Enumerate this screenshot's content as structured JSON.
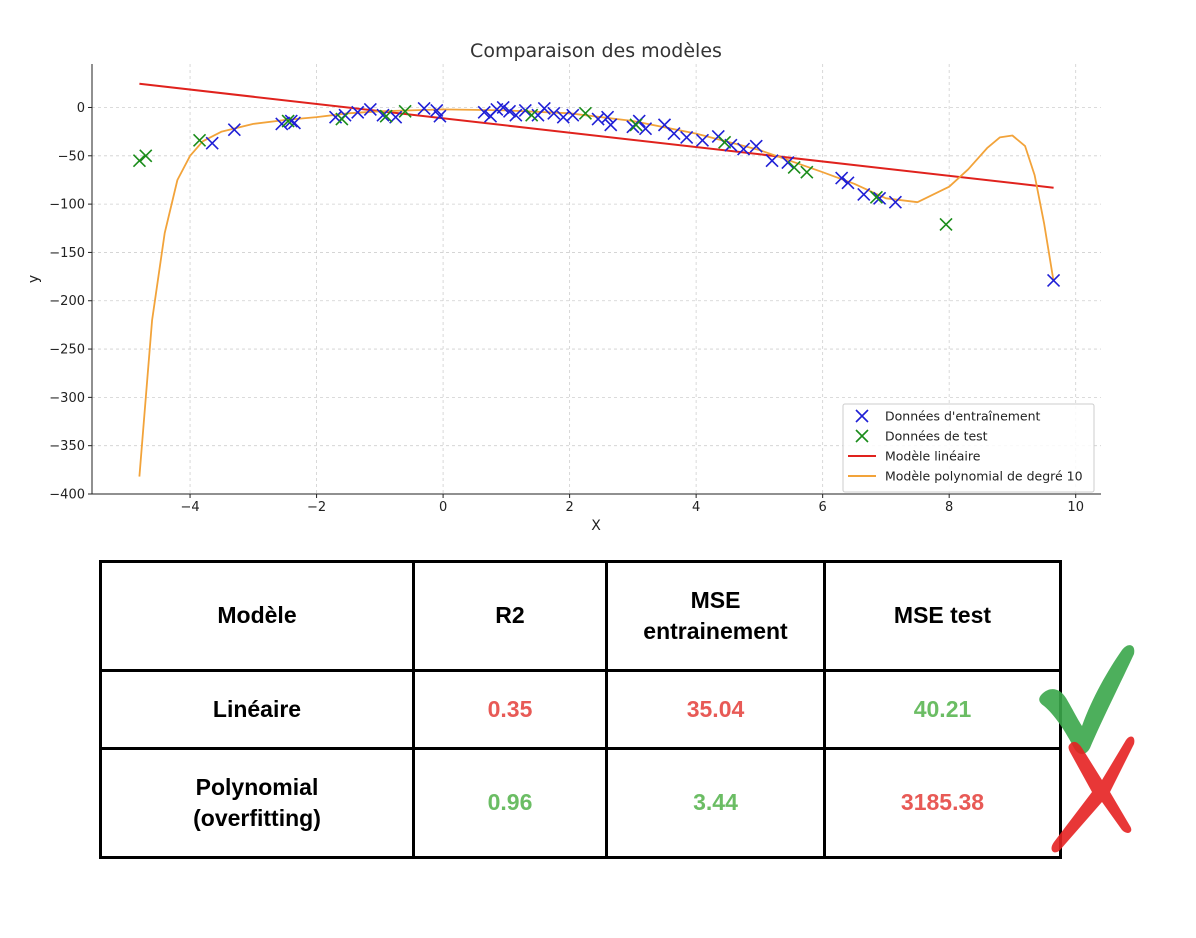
{
  "chart_data": {
    "type": "scatter",
    "title": "Comparaison des modèles",
    "xlabel": "X",
    "ylabel": "y",
    "xlim": [
      -5.55,
      10.4
    ],
    "ylim": [
      -400,
      45
    ],
    "x_ticks": [
      -4,
      -2,
      0,
      2,
      4,
      6,
      8,
      10
    ],
    "y_ticks": [
      0,
      -50,
      -100,
      -150,
      -200,
      -250,
      -300,
      -350,
      -400
    ],
    "x_tick_labels": [
      "−4",
      "−2",
      "0",
      "2",
      "4",
      "6",
      "8",
      "10"
    ],
    "y_tick_labels": [
      "0",
      "−50",
      "−100",
      "−150",
      "−200",
      "−250",
      "−300",
      "−350",
      "−400"
    ],
    "grid": true,
    "legend_position": "bottom-right",
    "series": [
      {
        "name": "Données d'entraînement",
        "kind": "scatter",
        "marker": "x",
        "color": "#1f1fd6",
        "points": [
          [
            -3.65,
            -37
          ],
          [
            -3.3,
            -23
          ],
          [
            -2.55,
            -17
          ],
          [
            -2.4,
            -14
          ],
          [
            -2.35,
            -16
          ],
          [
            -1.7,
            -10
          ],
          [
            -1.55,
            -8
          ],
          [
            -1.35,
            -5
          ],
          [
            -1.15,
            -2
          ],
          [
            -0.95,
            -8
          ],
          [
            -0.75,
            -10
          ],
          [
            -0.3,
            -1
          ],
          [
            -0.1,
            -3
          ],
          [
            -0.05,
            -9
          ],
          [
            0.65,
            -5
          ],
          [
            0.75,
            -9
          ],
          [
            0.85,
            -2
          ],
          [
            0.95,
            0
          ],
          [
            1.05,
            -4
          ],
          [
            1.15,
            -8
          ],
          [
            1.3,
            -3
          ],
          [
            1.5,
            -8
          ],
          [
            1.6,
            -1
          ],
          [
            1.75,
            -6
          ],
          [
            1.9,
            -10
          ],
          [
            2.05,
            -8
          ],
          [
            2.45,
            -12
          ],
          [
            2.6,
            -10
          ],
          [
            2.65,
            -18
          ],
          [
            3.0,
            -20
          ],
          [
            3.1,
            -14
          ],
          [
            3.2,
            -22
          ],
          [
            3.5,
            -18
          ],
          [
            3.65,
            -27
          ],
          [
            3.85,
            -31
          ],
          [
            4.1,
            -34
          ],
          [
            4.35,
            -30
          ],
          [
            4.55,
            -39
          ],
          [
            4.75,
            -43
          ],
          [
            4.95,
            -40
          ],
          [
            5.2,
            -55
          ],
          [
            5.45,
            -57
          ],
          [
            6.3,
            -73
          ],
          [
            6.4,
            -78
          ],
          [
            6.65,
            -90
          ],
          [
            6.9,
            -94
          ],
          [
            7.15,
            -98
          ],
          [
            9.65,
            -179
          ]
        ]
      },
      {
        "name": "Données de test",
        "kind": "scatter",
        "marker": "x",
        "color": "#1a8c1a",
        "points": [
          [
            -4.8,
            -55
          ],
          [
            -4.7,
            -50
          ],
          [
            -3.85,
            -34
          ],
          [
            -2.45,
            -14
          ],
          [
            -1.6,
            -12
          ],
          [
            -0.9,
            -9
          ],
          [
            -0.6,
            -4
          ],
          [
            1.4,
            -8
          ],
          [
            2.25,
            -6
          ],
          [
            3.05,
            -18
          ],
          [
            4.45,
            -36
          ],
          [
            5.55,
            -62
          ],
          [
            5.75,
            -67
          ],
          [
            6.85,
            -93
          ],
          [
            7.95,
            -121
          ]
        ]
      },
      {
        "name": "Modèle linéaire",
        "kind": "line",
        "color": "#e0221d",
        "x": [
          -4.8,
          9.65
        ],
        "y": [
          24.5,
          -83
        ]
      },
      {
        "name": "Modèle polynomial de degré 10",
        "kind": "line",
        "color": "#f2a33a",
        "x": [
          -4.8,
          -4.7,
          -4.6,
          -4.4,
          -4.2,
          -4.0,
          -3.8,
          -3.5,
          -3.0,
          -2.5,
          -2.0,
          -1.5,
          -1.0,
          0.0,
          1.0,
          2.0,
          3.0,
          4.0,
          5.0,
          6.0,
          6.5,
          7.0,
          7.5,
          8.0,
          8.3,
          8.6,
          8.8,
          9.0,
          9.2,
          9.35,
          9.5,
          9.65
        ],
        "y": [
          -382,
          -300,
          -220,
          -130,
          -75,
          -50,
          -35,
          -25,
          -17,
          -13,
          -10,
          -6,
          -4,
          -2,
          -3,
          -6,
          -14,
          -27,
          -44,
          -67,
          -79,
          -94,
          -98,
          -82,
          -64,
          -42,
          -31,
          -29,
          -40,
          -70,
          -120,
          -180
        ]
      }
    ]
  },
  "table": {
    "headers": [
      "Modèle",
      "R2",
      "MSE\nentrainement",
      "MSE test"
    ],
    "rows": [
      {
        "model": "Linéaire",
        "r2": "0.35",
        "mse_train": "35.04",
        "mse_test": "40.21"
      },
      {
        "model": "Polynomial\n(overfitting)",
        "r2": "0.96",
        "mse_train": "3.44",
        "mse_test": "3185.38"
      }
    ],
    "colors": {
      "good": "#6bbd64",
      "bad": "#e85a56"
    }
  },
  "marks": {
    "check": {
      "icon": "checkmark-icon",
      "color": "#3aa64a"
    },
    "cross": {
      "icon": "cross-icon",
      "color": "#e62121"
    }
  }
}
